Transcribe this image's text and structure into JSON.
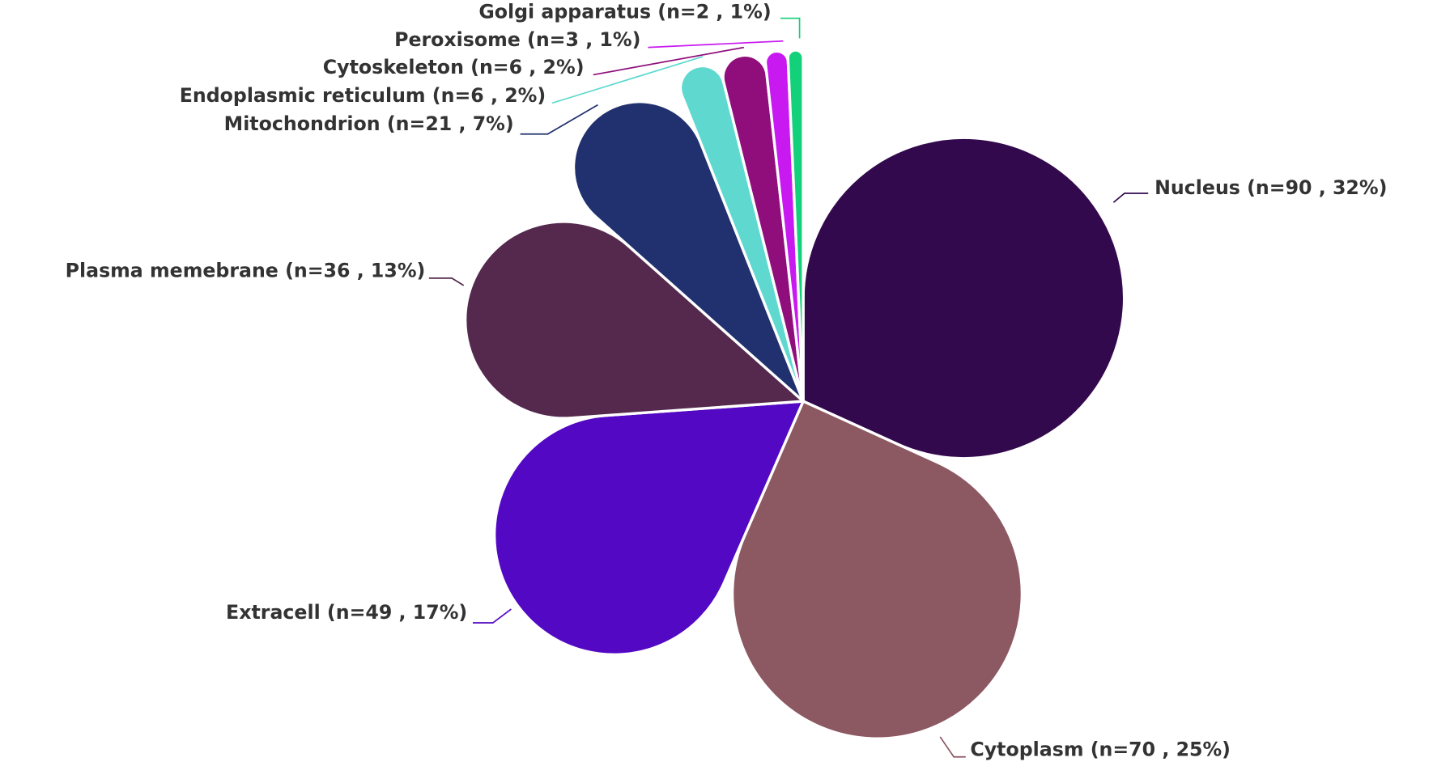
{
  "chart_data": {
    "type": "pie",
    "categories": [
      "Nucleus (n=90 , 32%)",
      "Cytoplasm (n=70 , 25%)",
      "Extracell (n=49 , 17%)",
      "Plasma memebrane (n=36 , 13%)",
      "Mitochondrion (n=21 , 7%)",
      "Endoplasmic reticulum (n=6 , 2%)",
      "Cytoskeleton (n=6 , 2%)",
      "Peroxisome (n=3 , 1%)",
      "Golgi apparatus (n=2 , 1%)"
    ],
    "values": [
      90,
      70,
      49,
      36,
      21,
      6,
      6,
      3,
      2
    ],
    "colors": [
      "#32094d",
      "#8c5862",
      "#5308c3",
      "#54294d",
      "#21306e",
      "#5fd9d0",
      "#8f0e7b",
      "#c81af0",
      "#13d07a"
    ]
  }
}
